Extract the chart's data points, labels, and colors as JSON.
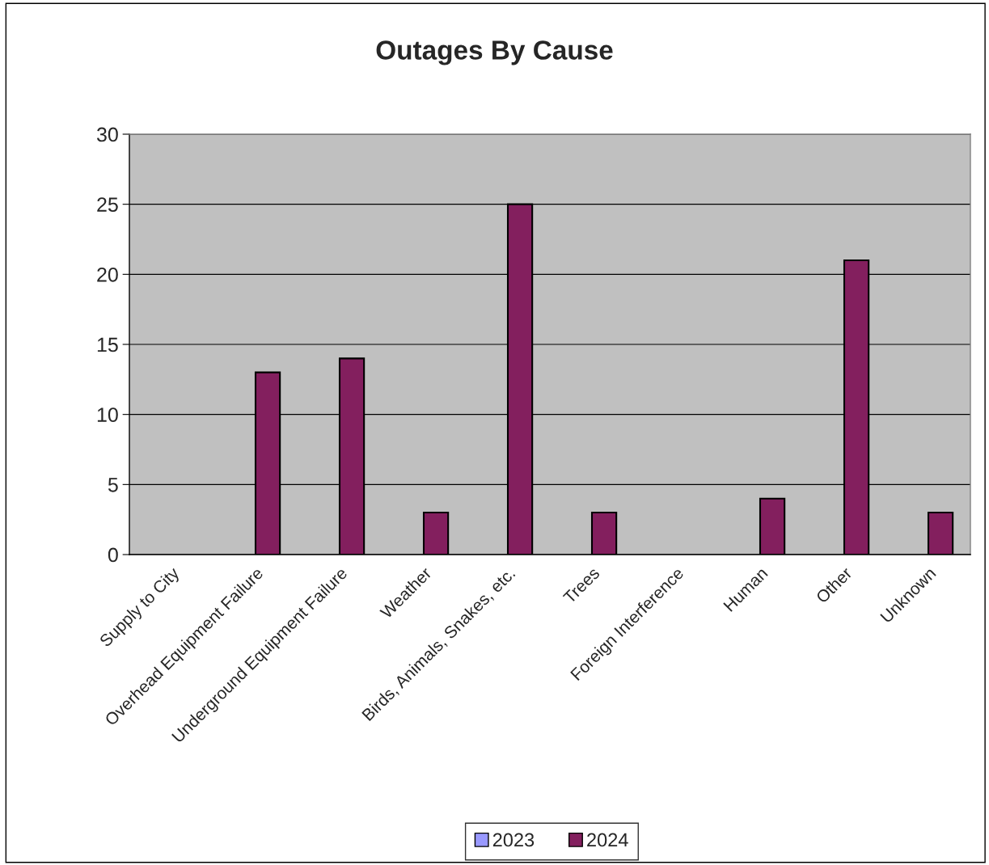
{
  "chart_data": {
    "type": "bar",
    "title": "Outages By Cause",
    "categories": [
      "Supply to City",
      "Overhead Equipment Failure",
      "Underground Equipment Failure",
      "Weather",
      "Birds, Animals, Snakes, etc.",
      "Trees",
      "Foreign Interference",
      "Human",
      "Other",
      "Unknown"
    ],
    "series": [
      {
        "name": "2023",
        "color": "#9999ff",
        "values": [
          null,
          null,
          null,
          null,
          null,
          null,
          null,
          null,
          null,
          null
        ]
      },
      {
        "name": "2024",
        "color": "#831f5e",
        "values": [
          null,
          13,
          14,
          3,
          25,
          3,
          null,
          4,
          21,
          3
        ]
      }
    ],
    "ylim": [
      0,
      30
    ],
    "yticks": [
      0,
      5,
      10,
      15,
      20,
      25,
      30
    ],
    "grid": "y",
    "legend": "bottom"
  }
}
